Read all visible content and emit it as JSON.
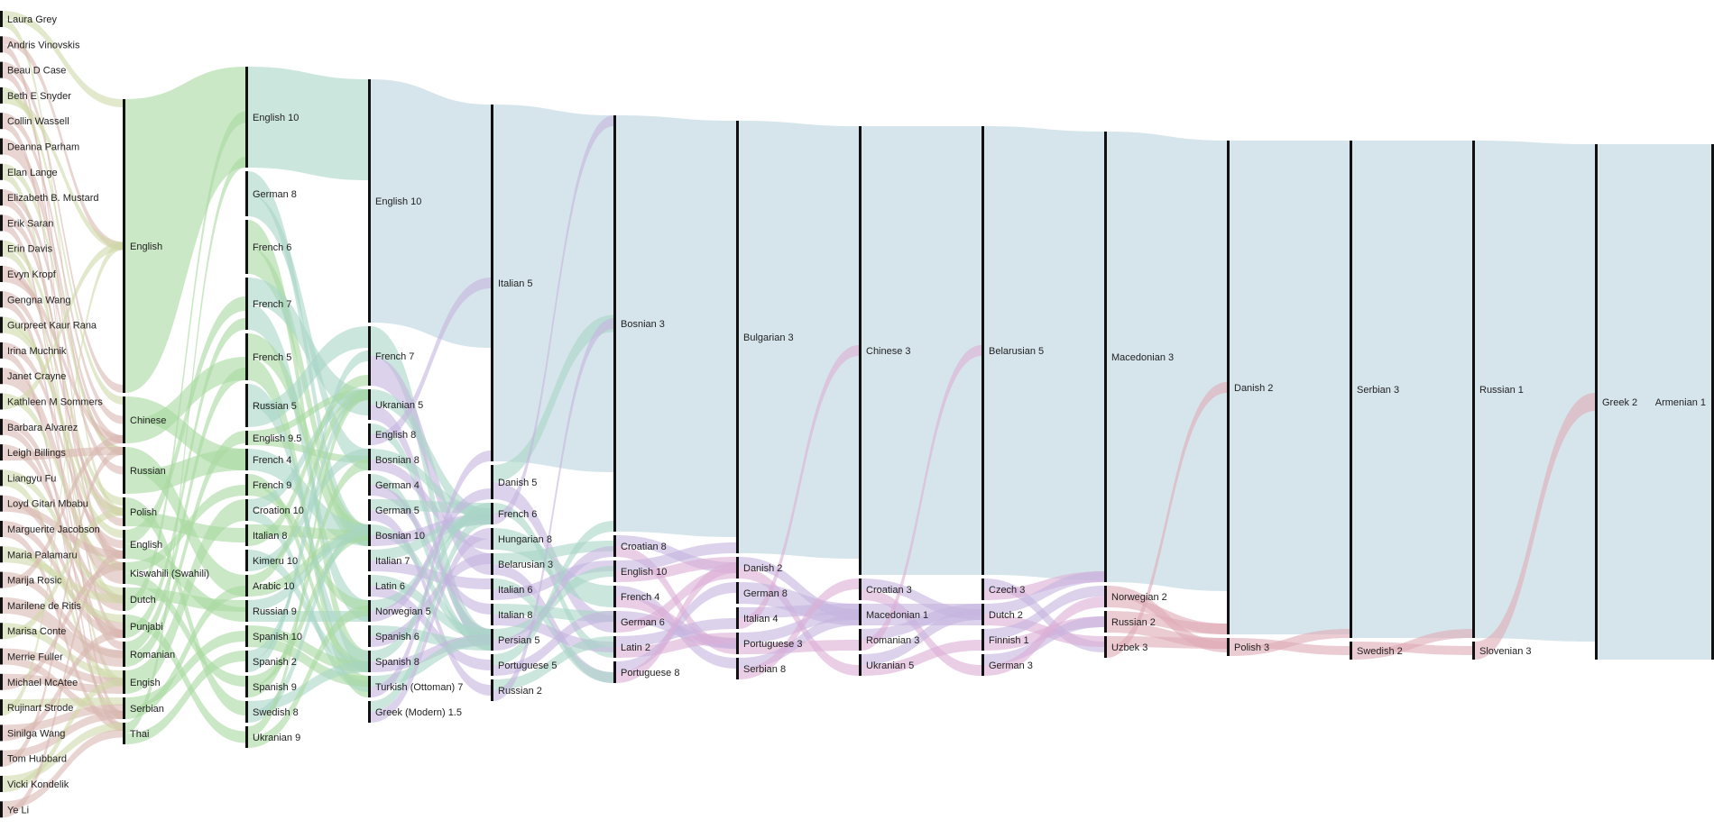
{
  "chart_data": {
    "type": "sankey",
    "columns": [
      [
        "Laura Grey",
        "Andris Vinovskis",
        "Beau D Case",
        "Beth E Snyder",
        "Collin Wassell",
        "Deanna Parham",
        "Elan Lange",
        "Elizabeth B. Mustard",
        "Erik Saran",
        "Erin Davis",
        "Evyn Kropf",
        "Gengna Wang",
        "Gurpreet Kaur Rana",
        "Irina Muchnik",
        "Janet Crayne",
        "Kathleen M Sommers",
        "Barbara Alvarez",
        "Leigh Billings",
        "Liangyu Fu",
        "Loyd Gitari Mbabu",
        "Marguerite Jacobson",
        "Maria Palamaru",
        "Marija Rosic",
        "Marilene de Ritis",
        "Marisa Conte",
        "Merrie Fuller",
        "Michael McAtee",
        "Rujinart Strode",
        "Sinilga Wang",
        "Tom Hubbard",
        "Vicki Kondelik",
        "Ye Li"
      ],
      [
        "English",
        "Chinese",
        "Russian",
        "Polish",
        "English ",
        "Kiswahili (Swahili)",
        "Dutch",
        "Punjabi",
        "Romanian",
        "Engish",
        "Serbian",
        "Thai"
      ],
      [
        "English 10",
        "German 8",
        "French 6",
        "French 7",
        "French 5",
        "Russian 5",
        "English 9.5",
        "French 4",
        "French 9",
        "Croation 10",
        "Italian 8",
        "Kimeru 10",
        "Arabic 10",
        "Russian 9",
        "Spanish 10",
        "Spanish 2",
        "Spanish 9",
        "Swedish 8",
        "Ukranian 9"
      ],
      [
        "English 10",
        "French 7",
        "Ukranian 5",
        "English 8",
        "Bosnian 8",
        "German 4",
        "German 5",
        "Bosnian 10",
        "Italian 7",
        "Latin 6",
        "Norwegian 5",
        "Spanish 6",
        "Spanish 8",
        "Turkish (Ottoman) 7",
        "Greek (Modern) 1.5"
      ],
      [
        "Italian 5",
        "Danish 5",
        "French 6",
        "Hungarian 8",
        "Belarusian 3",
        "Italian 6",
        "Italian 8",
        "Persian 5",
        "Portuguese 5",
        "Russian 2"
      ],
      [
        "Bosnian 3",
        "Croatian 8",
        "English 10",
        "French 4",
        "German 6",
        "Latin 2",
        "Portuguese 8"
      ],
      [
        "Bulgarian 3",
        "Danish 2",
        "German 8",
        "Italian 4",
        "Portuguese 3",
        "Serbian 8"
      ],
      [
        "Chinese 3",
        "Croatian 3",
        "Macedonian 1",
        "Romanian 3",
        "Ukranian 5"
      ],
      [
        "Belarusian 5",
        "Czech 3",
        "Dutch 2",
        "Finnish 1",
        "German 3"
      ],
      [
        "Macedonian 3",
        "Norwegian 2",
        "Russian 2",
        "Uzbek 3"
      ],
      [
        "Danish 2",
        "Polish 3"
      ],
      [
        "Serbian 3",
        "Swedish 2"
      ],
      [
        "Russian 1",
        "Slovenian 3"
      ],
      [
        "Greek 2"
      ],
      [
        "Armenian 1"
      ]
    ],
    "colors": {
      "people_flow": "#d9b8b0",
      "people_flow_alt": "#cfd8a8",
      "language_flow": "#a9d8a0",
      "level_flow": "#a9d6c6",
      "trunk_flow": "#bad3e0",
      "purple_flow": "#c4b4e0",
      "magenta_flow": "#dcaed6",
      "pink_flow": "#e0aab6",
      "node_bar": "#111111"
    }
  }
}
